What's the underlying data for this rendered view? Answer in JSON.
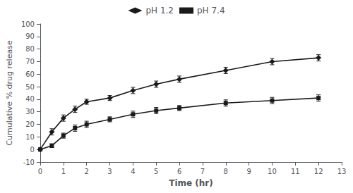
{
  "chart_data": {
    "type": "line",
    "xlabel": "Time (hr)",
    "ylabel": "Cumulative % drug release",
    "x": [
      0,
      0.5,
      1,
      1.5,
      2,
      3,
      4,
      5,
      6,
      8,
      10,
      12
    ],
    "series": [
      {
        "name": "pH 1.2",
        "color": "#1a1a1a",
        "marker": "diamond",
        "line_style": "solid",
        "values": [
          0,
          14,
          25,
          32,
          38,
          41,
          47,
          52,
          56,
          63,
          70,
          73
        ],
        "yerr": [
          0.5,
          2.5,
          2.5,
          2.5,
          2.0,
          2.0,
          2.5,
          2.5,
          2.5,
          2.5,
          2.5,
          2.5
        ]
      },
      {
        "name": "pH 7.4",
        "color": "#1a1a1a",
        "marker": "square",
        "line_style": "solid",
        "values": [
          0,
          3,
          11,
          17,
          20,
          24,
          28,
          31,
          33,
          37,
          39,
          41
        ],
        "yerr": [
          0.5,
          1.5,
          2.0,
          2.5,
          2.5,
          2.0,
          2.5,
          2.5,
          2.0,
          2.5,
          2.5,
          2.5
        ]
      }
    ],
    "xlim": [
      0,
      13
    ],
    "xticks": [
      0,
      1,
      2,
      3,
      4,
      5,
      6,
      7,
      8,
      9,
      10,
      11,
      12,
      13
    ],
    "ylim": [
      -10,
      100
    ],
    "yticks": [
      -10,
      0,
      10,
      20,
      30,
      40,
      50,
      60,
      70,
      80,
      90,
      100
    ],
    "grid": false,
    "legend": "top"
  }
}
